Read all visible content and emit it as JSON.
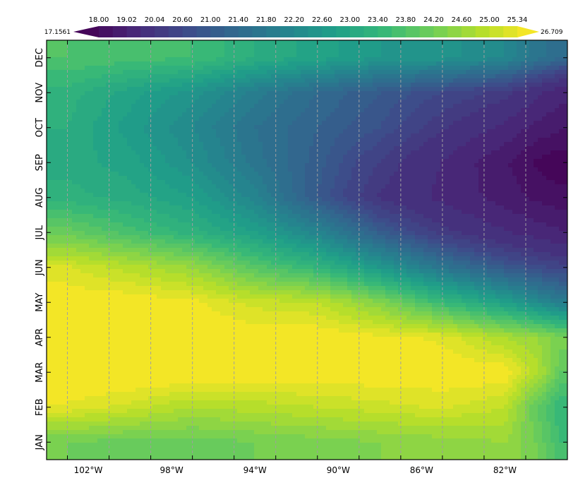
{
  "chart_data": {
    "type": "heatmap",
    "title": "",
    "xlabel": "",
    "ylabel": "",
    "x_ticks": [
      "102°W",
      "98°W",
      "94°W",
      "90°W",
      "86°W",
      "82°W"
    ],
    "x_tick_values": [
      -102,
      -98,
      -94,
      -90,
      -86,
      -82
    ],
    "xlim": [
      -104,
      -79
    ],
    "y_ticks": [
      "JAN",
      "FEB",
      "MAR",
      "APR",
      "MAY",
      "JUN",
      "JUL",
      "AUG",
      "SEP",
      "OCT",
      "NOV",
      "DEC"
    ],
    "grid": "vertical dashed",
    "colormap": "viridis",
    "colorbar": {
      "placement": "top",
      "min_label": "17.1561",
      "max_label": "26.709",
      "tick_labels": [
        "18.00",
        "19.02",
        "20.04",
        "20.60",
        "21.00",
        "21.40",
        "21.80",
        "22.20",
        "22.60",
        "23.00",
        "23.40",
        "23.80",
        "24.20",
        "24.60",
        "25.00",
        "25.34"
      ],
      "levels": [
        17.1561,
        18.0,
        18.51,
        19.02,
        19.53,
        20.04,
        20.32,
        20.6,
        20.8,
        21.0,
        21.2,
        21.4,
        21.6,
        21.8,
        22.0,
        22.2,
        22.4,
        22.6,
        22.8,
        23.0,
        23.2,
        23.4,
        23.6,
        23.8,
        24.0,
        24.2,
        24.4,
        24.6,
        24.8,
        25.0,
        25.17,
        25.34,
        26.709
      ]
    },
    "z_longitudes": [
      -103,
      -100,
      -97,
      -94,
      -91,
      -88,
      -85,
      -82,
      -80.5,
      -79.3
    ],
    "z_months": [
      "JAN",
      "FEB",
      "MAR",
      "APR",
      "MAY",
      "JUN",
      "JUL",
      "AUG",
      "SEP",
      "OCT",
      "NOV",
      "DEC"
    ],
    "z_values": [
      [
        24.2,
        24.1,
        24.1,
        24.2,
        24.3,
        24.4,
        24.5,
        24.6,
        24.2,
        23.6
      ],
      [
        25.3,
        25.1,
        24.8,
        24.9,
        25.0,
        25.1,
        25.2,
        25.0,
        24.0,
        23.4
      ],
      [
        25.6,
        25.6,
        25.6,
        25.5,
        25.5,
        25.5,
        25.5,
        25.5,
        24.9,
        24.0
      ],
      [
        25.6,
        25.6,
        25.5,
        25.5,
        25.5,
        25.4,
        25.3,
        24.8,
        24.6,
        24.3
      ],
      [
        25.5,
        25.5,
        25.4,
        25.1,
        25.0,
        24.4,
        23.5,
        22.8,
        22.3,
        21.9
      ],
      [
        25.2,
        24.9,
        24.6,
        23.9,
        23.4,
        22.6,
        21.7,
        21.0,
        20.7,
        20.5
      ],
      [
        24.1,
        23.7,
        23.3,
        22.8,
        22.1,
        21.1,
        20.2,
        19.6,
        19.3,
        19.1
      ],
      [
        23.3,
        23.1,
        22.8,
        22.1,
        21.0,
        20.0,
        19.4,
        18.8,
        18.4,
        18.2
      ],
      [
        23.1,
        22.9,
        22.4,
        21.7,
        21.1,
        20.3,
        19.5,
        18.6,
        17.9,
        17.6
      ],
      [
        23.2,
        22.7,
        22.2,
        21.6,
        21.2,
        20.8,
        20.1,
        19.4,
        18.9,
        18.6
      ],
      [
        23.3,
        22.9,
        22.5,
        21.9,
        21.4,
        21.0,
        20.6,
        20.2,
        19.7,
        19.2
      ],
      [
        23.8,
        23.7,
        23.6,
        23.2,
        22.9,
        22.6,
        22.5,
        22.2,
        21.7,
        21.4
      ]
    ]
  }
}
